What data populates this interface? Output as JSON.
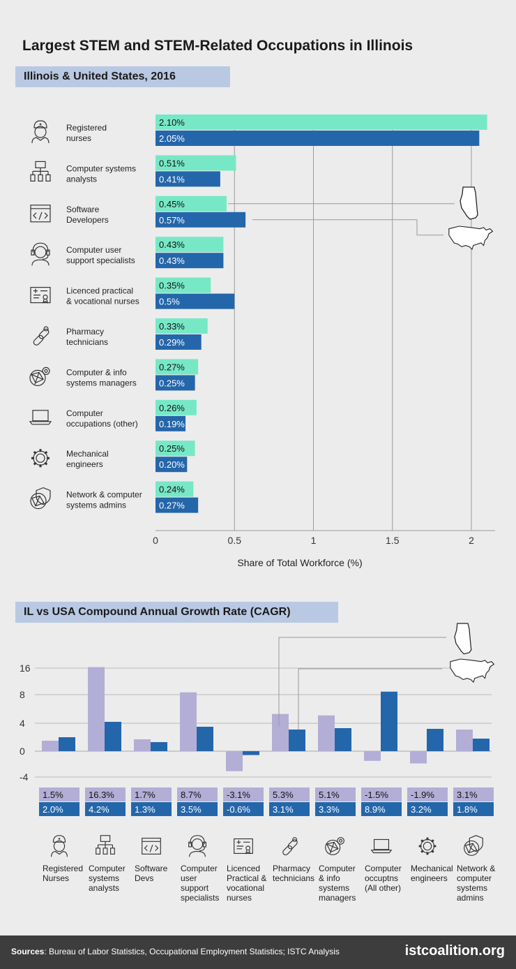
{
  "title": "Largest STEM and STEM-Related Occupations in Illinois",
  "section1": {
    "heading": "Illinois & United States, 2016"
  },
  "section2": {
    "heading": "IL vs USA Compound Annual Growth Rate (CAGR)"
  },
  "colors": {
    "il_share": "#77e8c6",
    "usa": "#2466aa",
    "il_cagr": "#b3aed6",
    "label_box": "#b3aed6",
    "grid": "#9a9a9a"
  },
  "chart_data": [
    {
      "type": "bar",
      "orientation": "horizontal",
      "categories": [
        "Registered nurses",
        "Computer systems analysts",
        "Software Developers",
        "Computer user support specialists",
        "Licenced practical & vocational nurses",
        "Pharmacy technicians",
        "Computer & info systems managers",
        "Computer occupations (other)",
        "Mechanical engineers",
        "Network & computer systems admins"
      ],
      "category_lines": [
        [
          "Registered",
          "nurses"
        ],
        [
          "Computer systems",
          "analysts"
        ],
        [
          "Software",
          "Developers"
        ],
        [
          "Computer user",
          "support specialists"
        ],
        [
          "Licenced practical",
          "& vocational nurses"
        ],
        [
          "Pharmacy",
          "technicians"
        ],
        [
          "Computer & info",
          "systems managers"
        ],
        [
          "Computer",
          "occupations (other)"
        ],
        [
          "Mechanical",
          "engineers"
        ],
        [
          "Network & computer",
          "systems admins"
        ]
      ],
      "icons": [
        "nurse-icon",
        "network-diagram-icon",
        "code-window-icon",
        "headset-support-icon",
        "certificate-icon",
        "pills-icon",
        "gear-network-icon",
        "laptop-icon",
        "gear-icon",
        "shield-network-icon"
      ],
      "series": [
        {
          "values": [
            2.1,
            0.51,
            0.45,
            0.43,
            0.35,
            0.33,
            0.27,
            0.26,
            0.25,
            0.24
          ],
          "labels": [
            "2.10%",
            "0.51%",
            "0.45%",
            "0.43%",
            "0.35%",
            "0.33%",
            "0.27%",
            "0.26%",
            "0.25%",
            "0.24%"
          ]
        },
        {
          "values": [
            2.05,
            0.41,
            0.57,
            0.43,
            0.5,
            0.29,
            0.25,
            0.19,
            0.2,
            0.27
          ],
          "labels": [
            "2.05%",
            "0.41%",
            "0.57%",
            "0.43%",
            "0.5%",
            "0.29%",
            "0.25%",
            "0.19%",
            "0.20%",
            "0.27%"
          ]
        }
      ],
      "xlabel": "Share of Total Workforce (%)",
      "xlim": [
        0,
        2.15
      ],
      "xticks": [
        0,
        0.5,
        1,
        1.5,
        2
      ],
      "xtick_labels": [
        "0",
        "0.5",
        "1",
        "1.5",
        "2"
      ],
      "grid": true,
      "legend": "state and US map icons"
    },
    {
      "type": "bar",
      "orientation": "vertical",
      "categories": [
        "Registered Nurses",
        "Computer systems analysts",
        "Software Devs",
        "Computer user support specialists",
        "Licenced Practical & vocational nurses",
        "Pharmacy technicians",
        "Computer & info systems managers",
        "Computer occuptns (All other)",
        "Mechanical engineers",
        "Network & computer systems admins"
      ],
      "category_lines": [
        [
          "Registered",
          "Nurses"
        ],
        [
          "Computer",
          "systems",
          "analysts"
        ],
        [
          "Software",
          "Devs"
        ],
        [
          "Computer",
          "user",
          "support",
          "specialists"
        ],
        [
          "Licenced",
          "Practical &",
          "vocational",
          "nurses"
        ],
        [
          "Pharmacy",
          "technicians"
        ],
        [
          "Computer",
          "& info",
          "systems",
          "managers"
        ],
        [
          "Computer",
          "occuptns",
          "(All other)"
        ],
        [
          "Mechanical",
          "engineers"
        ],
        [
          "Network &",
          "computer",
          "systems",
          "admins"
        ]
      ],
      "icons": [
        "nurse-icon",
        "network-diagram-icon",
        "code-window-icon",
        "headset-support-icon",
        "certificate-icon",
        "pills-icon",
        "gear-network-icon",
        "laptop-icon",
        "gear-icon",
        "shield-network-icon"
      ],
      "series": [
        {
          "values": [
            1.5,
            16.3,
            1.7,
            8.7,
            -3.1,
            5.3,
            5.1,
            -1.5,
            -1.9,
            3.1
          ],
          "labels": [
            "1.5%",
            "16.3%",
            "1.7%",
            "8.7%",
            "-3.1%",
            "5.3%",
            "5.1%",
            "-1.5%",
            "-1.9%",
            "3.1%"
          ]
        },
        {
          "values": [
            2.0,
            4.2,
            1.3,
            3.5,
            -0.6,
            3.1,
            3.3,
            8.9,
            3.2,
            1.8
          ],
          "labels": [
            "2.0%",
            "4.2%",
            "1.3%",
            "3.5%",
            "-0.6%",
            "3.1%",
            "3.3%",
            "8.9%",
            "3.2%",
            "1.8%"
          ]
        }
      ],
      "yscale": "nonlinear",
      "yticks": [
        -4,
        0,
        4,
        8,
        16
      ],
      "ytick_labels": [
        "-4",
        "0",
        "4",
        "8",
        "16"
      ],
      "grid": true,
      "legend": "state and US map icons"
    }
  ],
  "footer": {
    "sources_label": "Sources",
    "sources_text": ": Bureau of Labor Statistics, Occupational Employment Statistics; ISTC Analysis",
    "brand": "istcoalition.org"
  }
}
